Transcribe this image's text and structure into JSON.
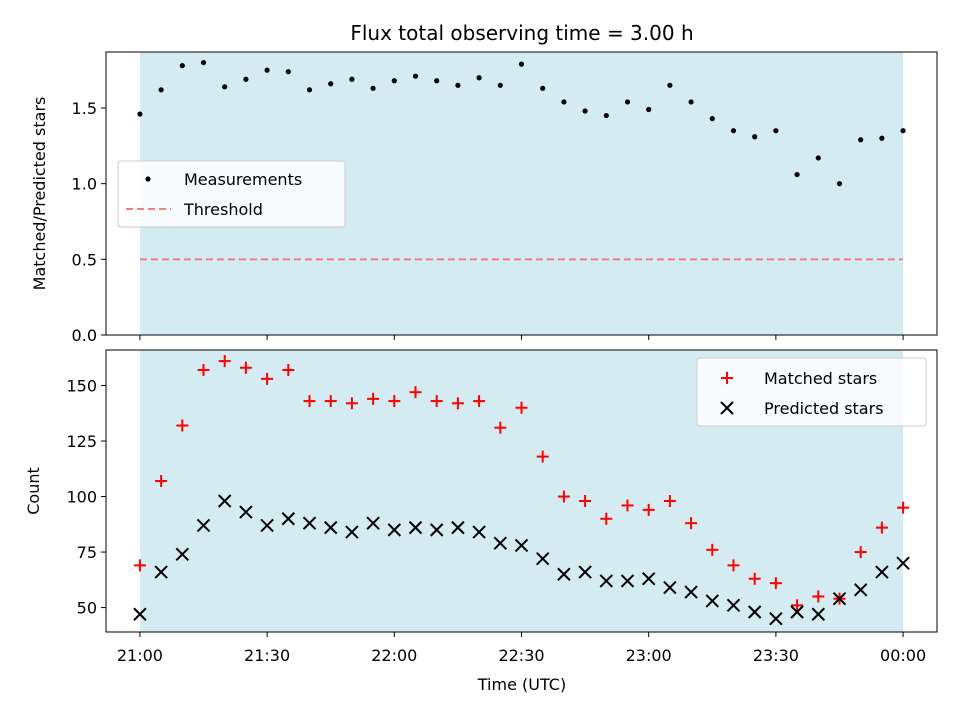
{
  "chart_data": [
    {
      "type": "scatter",
      "title": "Flux total observing time = 3.00 h",
      "xlabel": "",
      "ylabel": "Matched/Predicted stars",
      "ylim": [
        0,
        1.87
      ],
      "yticks": [
        "0.0",
        "0.5",
        "1.0",
        "1.5"
      ],
      "xlim": [
        "20:52",
        "00:08"
      ],
      "shaded_region": [
        "21:00",
        "00:00"
      ],
      "shaded_color": "#d4ebf2",
      "grid": false,
      "legend_position": "center-left",
      "threshold": {
        "name": "Threshold",
        "value": 0.5,
        "color": "#f08080",
        "style": "dashed"
      },
      "series": [
        {
          "name": "Measurements",
          "marker": "dot",
          "color": "#000000",
          "x": [
            "21:00",
            "21:05",
            "21:10",
            "21:15",
            "21:20",
            "21:25",
            "21:30",
            "21:35",
            "21:40",
            "21:45",
            "21:50",
            "21:55",
            "22:00",
            "22:05",
            "22:10",
            "22:15",
            "22:20",
            "22:25",
            "22:30",
            "22:35",
            "22:40",
            "22:45",
            "22:50",
            "22:55",
            "23:00",
            "23:05",
            "23:10",
            "23:15",
            "23:20",
            "23:25",
            "23:30",
            "23:35",
            "23:40",
            "23:45",
            "23:50",
            "23:55",
            "00:00"
          ],
          "values": [
            1.46,
            1.62,
            1.78,
            1.8,
            1.64,
            1.69,
            1.75,
            1.74,
            1.62,
            1.66,
            1.69,
            1.63,
            1.68,
            1.71,
            1.68,
            1.65,
            1.7,
            1.65,
            1.79,
            1.63,
            1.54,
            1.48,
            1.45,
            1.54,
            1.49,
            1.65,
            1.54,
            1.43,
            1.35,
            1.31,
            1.35,
            1.06,
            1.17,
            1.0,
            1.29,
            1.3,
            1.35
          ]
        }
      ]
    },
    {
      "type": "scatter",
      "title": "",
      "xlabel": "Time (UTC)",
      "ylabel": "Count",
      "ylim": [
        39,
        166
      ],
      "yticks": [
        "50",
        "75",
        "100",
        "125",
        "150"
      ],
      "xticks": [
        "21:00",
        "21:30",
        "22:00",
        "22:30",
        "23:00",
        "23:30",
        "00:00"
      ],
      "xlim": [
        "20:52",
        "00:08"
      ],
      "shaded_region": [
        "21:00",
        "00:00"
      ],
      "shaded_color": "#d4ebf2",
      "grid": false,
      "legend_position": "top-right",
      "series": [
        {
          "name": "Matched stars",
          "marker": "plus",
          "color": "#ff0000",
          "x": [
            "21:00",
            "21:05",
            "21:10",
            "21:15",
            "21:20",
            "21:25",
            "21:30",
            "21:35",
            "21:40",
            "21:45",
            "21:50",
            "21:55",
            "22:00",
            "22:05",
            "22:10",
            "22:15",
            "22:20",
            "22:25",
            "22:30",
            "22:35",
            "22:40",
            "22:45",
            "22:50",
            "22:55",
            "23:00",
            "23:05",
            "23:10",
            "23:15",
            "23:20",
            "23:25",
            "23:30",
            "23:35",
            "23:40",
            "23:45",
            "23:50",
            "23:55",
            "00:00"
          ],
          "values": [
            69,
            107,
            132,
            157,
            161,
            158,
            153,
            157,
            143,
            143,
            142,
            144,
            143,
            147,
            143,
            142,
            143,
            131,
            140,
            118,
            100,
            98,
            90,
            96,
            94,
            98,
            88,
            76,
            69,
            63,
            61,
            51,
            55,
            54,
            75,
            86,
            95
          ]
        },
        {
          "name": "Predicted stars",
          "marker": "x",
          "color": "#000000",
          "x": [
            "21:00",
            "21:05",
            "21:10",
            "21:15",
            "21:20",
            "21:25",
            "21:30",
            "21:35",
            "21:40",
            "21:45",
            "21:50",
            "21:55",
            "22:00",
            "22:05",
            "22:10",
            "22:15",
            "22:20",
            "22:25",
            "22:30",
            "22:35",
            "22:40",
            "22:45",
            "22:50",
            "22:55",
            "23:00",
            "23:05",
            "23:10",
            "23:15",
            "23:20",
            "23:25",
            "23:30",
            "23:35",
            "23:40",
            "23:45",
            "23:50",
            "23:55",
            "00:00"
          ],
          "values": [
            47,
            66,
            74,
            87,
            98,
            93,
            87,
            90,
            88,
            86,
            84,
            88,
            85,
            86,
            85,
            86,
            84,
            79,
            78,
            72,
            65,
            66,
            62,
            62,
            63,
            59,
            57,
            53,
            51,
            48,
            45,
            48,
            47,
            54,
            58,
            66,
            70
          ]
        }
      ]
    }
  ]
}
